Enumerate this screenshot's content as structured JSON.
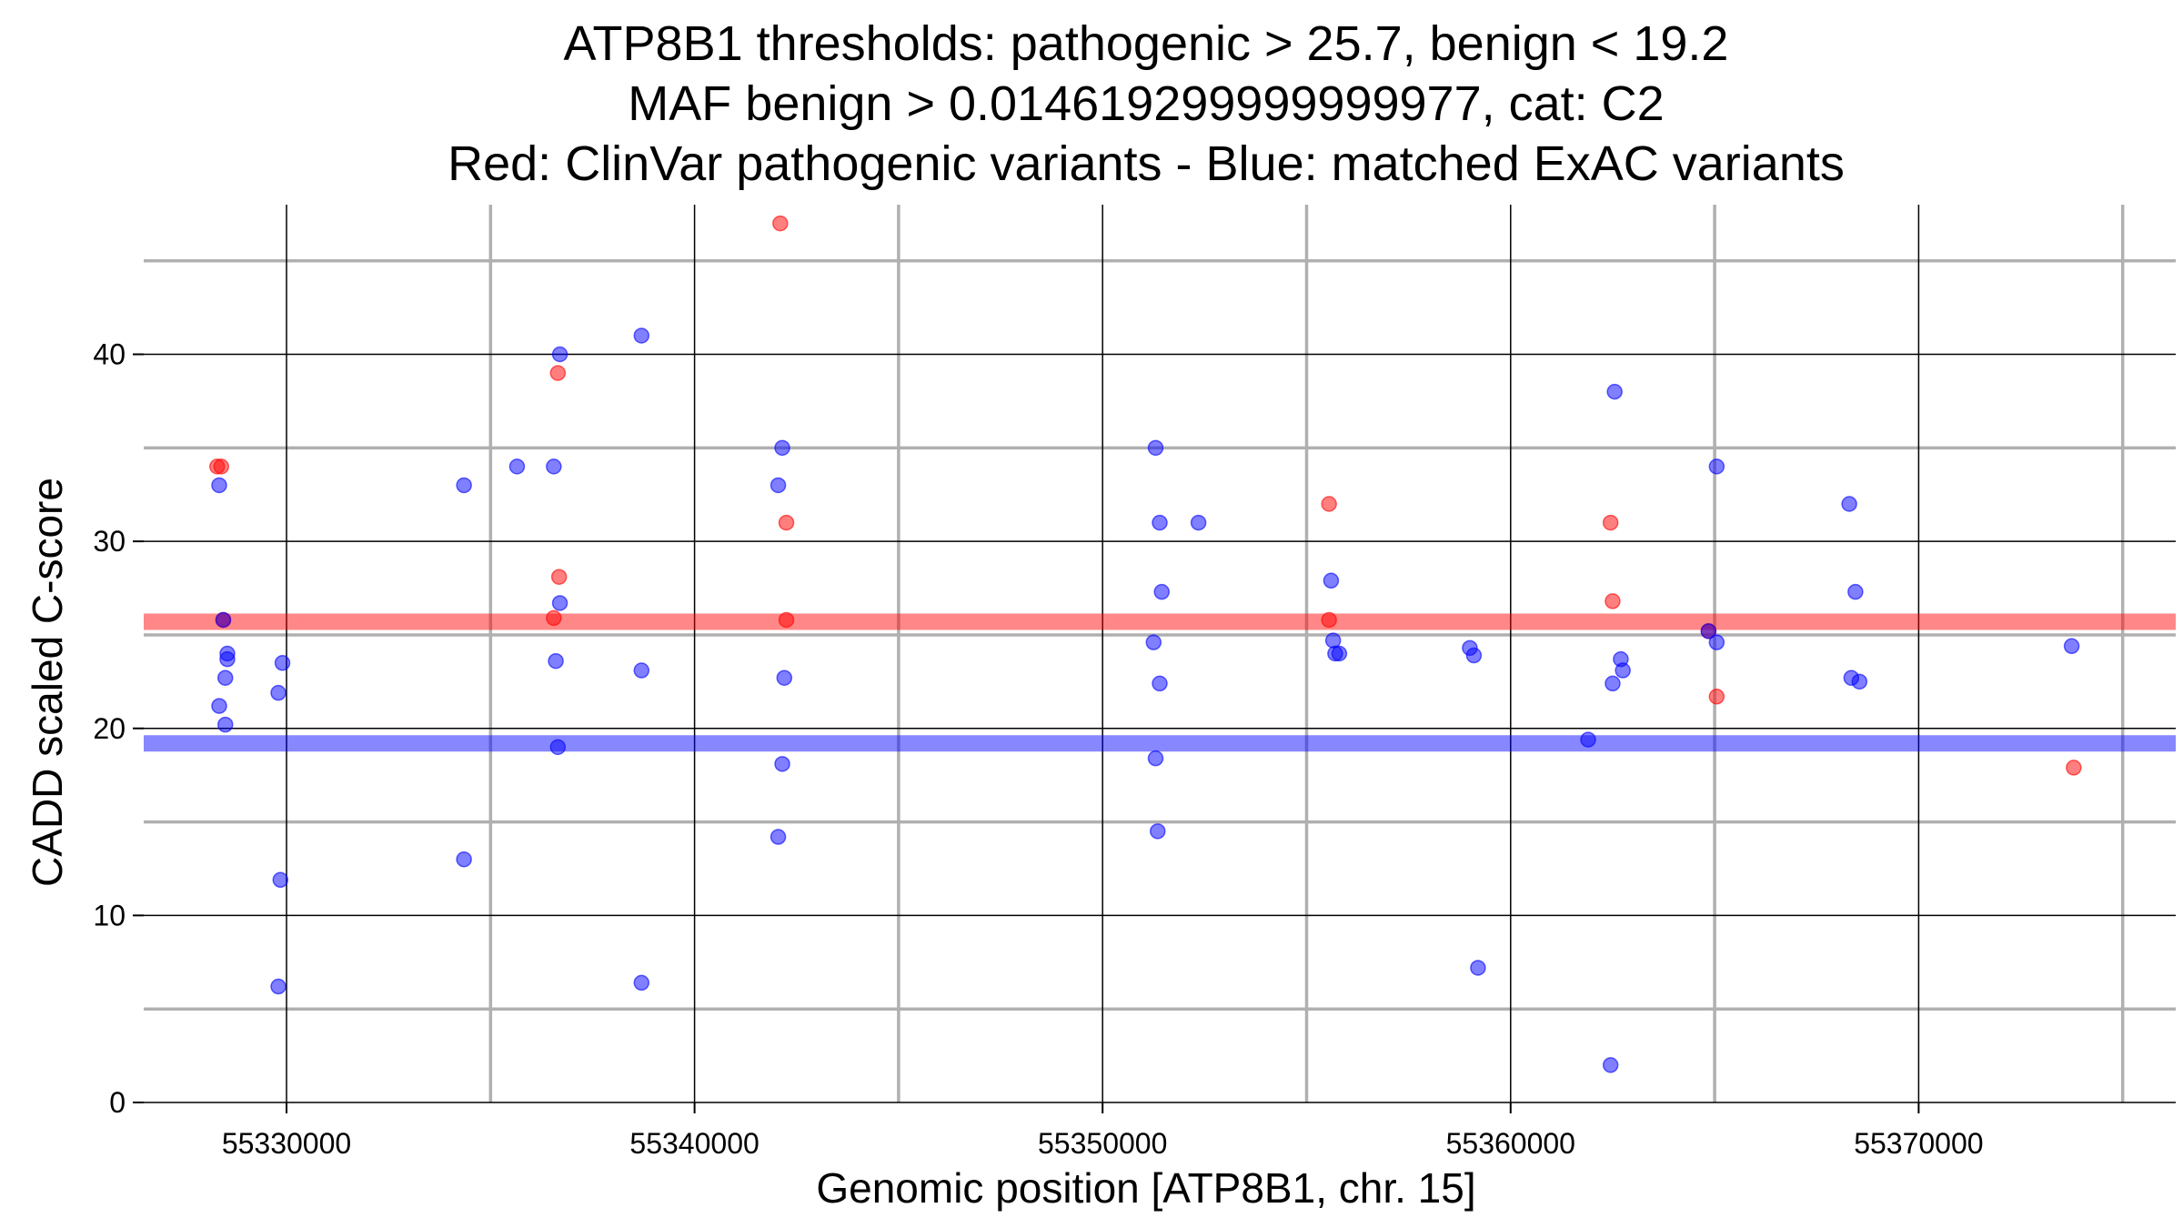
{
  "chart_data": {
    "type": "scatter",
    "title": [
      "ATP8B1 thresholds: pathogenic > 25.7, benign < 19.2",
      "MAF benign > 0.014619299999999977, cat: C2",
      "Red: ClinVar pathogenic variants - Blue: matched ExAC variants"
    ],
    "xlabel": "Genomic position [ATP8B1, chr. 15]",
    "ylabel": "CADD scaled C-score",
    "xlim": [
      55326500,
      55376300
    ],
    "ylim": [
      0,
      48
    ],
    "x_ticks": [
      55330000,
      55340000,
      55350000,
      55360000,
      55370000
    ],
    "x_tick_labels": [
      "55330000",
      "55340000",
      "55350000",
      "55360000",
      "55370000"
    ],
    "y_ticks": [
      0,
      10,
      20,
      30,
      40
    ],
    "y_tick_labels": [
      "0",
      "10",
      "20",
      "30",
      "40"
    ],
    "grid": true,
    "thresholds": {
      "pathogenic": 25.7,
      "benign": 19.2,
      "pathogenic_color": "#ff0000",
      "benign_color": "#0000ff"
    },
    "series": [
      {
        "name": "ClinVar pathogenic variants",
        "color": "#ff0000",
        "points": [
          [
            55328300,
            34
          ],
          [
            55328400,
            34
          ],
          [
            55328450,
            25.8
          ],
          [
            55336550,
            25.9
          ],
          [
            55336650,
            39
          ],
          [
            55336680,
            28.1
          ],
          [
            55342100,
            47
          ],
          [
            55342250,
            31
          ],
          [
            55342250,
            25.8
          ],
          [
            55355550,
            32
          ],
          [
            55355550,
            25.8
          ],
          [
            55362450,
            31
          ],
          [
            55362500,
            26.8
          ],
          [
            55364850,
            25.2
          ],
          [
            55365050,
            21.7
          ],
          [
            55373800,
            17.9
          ]
        ]
      },
      {
        "name": "matched ExAC variants",
        "color": "#0000ff",
        "points": [
          [
            55328350,
            33
          ],
          [
            55328450,
            25.8
          ],
          [
            55328550,
            24
          ],
          [
            55328550,
            23.7
          ],
          [
            55328500,
            22.7
          ],
          [
            55328350,
            21.2
          ],
          [
            55328500,
            20.2
          ],
          [
            55329800,
            21.9
          ],
          [
            55329900,
            23.5
          ],
          [
            55329850,
            11.9
          ],
          [
            55329800,
            6.2
          ],
          [
            55334350,
            33
          ],
          [
            55334350,
            13
          ],
          [
            55335650,
            34
          ],
          [
            55336550,
            34
          ],
          [
            55336700,
            40
          ],
          [
            55336700,
            26.7
          ],
          [
            55336600,
            23.6
          ],
          [
            55336650,
            19
          ],
          [
            55338700,
            41
          ],
          [
            55338700,
            23.1
          ],
          [
            55338700,
            6.4
          ],
          [
            55342150,
            35
          ],
          [
            55342050,
            33
          ],
          [
            55342200,
            22.7
          ],
          [
            55342150,
            18.1
          ],
          [
            55342050,
            14.2
          ],
          [
            55351300,
            35
          ],
          [
            55351400,
            31
          ],
          [
            55351450,
            27.3
          ],
          [
            55351250,
            24.6
          ],
          [
            55351400,
            22.4
          ],
          [
            55351300,
            18.4
          ],
          [
            55351350,
            14.5
          ],
          [
            55352350,
            31
          ],
          [
            55355600,
            27.9
          ],
          [
            55355650,
            24.7
          ],
          [
            55355700,
            24
          ],
          [
            55355800,
            24
          ],
          [
            55359000,
            24.3
          ],
          [
            55359100,
            23.9
          ],
          [
            55359200,
            7.2
          ],
          [
            55361900,
            19.4
          ],
          [
            55362550,
            38
          ],
          [
            55362700,
            23.7
          ],
          [
            55362750,
            23.1
          ],
          [
            55362500,
            22.4
          ],
          [
            55362450,
            2
          ],
          [
            55365050,
            34
          ],
          [
            55365050,
            24.6
          ],
          [
            55364850,
            25.2
          ],
          [
            55368300,
            32
          ],
          [
            55368450,
            27.3
          ],
          [
            55368350,
            22.7
          ],
          [
            55368550,
            22.5
          ],
          [
            55373750,
            24.4
          ]
        ]
      }
    ]
  }
}
